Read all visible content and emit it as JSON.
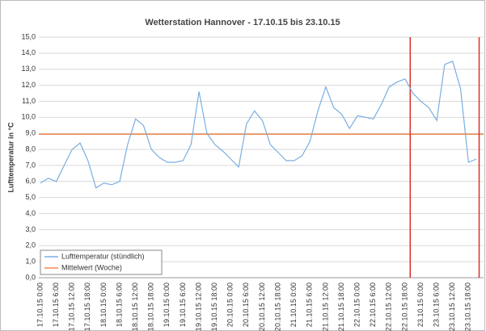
{
  "chart_data": {
    "type": "line",
    "title": "Wetterstation Hannover - 17.10.15 bis 23.10.15",
    "y_label": "Lufttemperatur in °C",
    "categories": [
      "17.10.15 0:00",
      null,
      "17.10.15 6:00",
      null,
      "17.10.15 12:00",
      null,
      "17.10.15 18:00",
      null,
      "18.10.15 0:00",
      null,
      "18.10.15 6:00",
      null,
      "18.10.15 12:00",
      null,
      "18.10.15 18:00",
      null,
      "19.10.15 0:00",
      null,
      "19.10.15 6:00",
      null,
      "19.10.15 12:00",
      null,
      "19.10.15 18:00",
      null,
      "20.10.15 0:00",
      null,
      "20.10.15 6:00",
      null,
      "20.10.15 12:00",
      null,
      "20.10.15 18:00",
      null,
      "21.10.15 0:00",
      null,
      "21.10.15 6:00",
      null,
      "21.10.15 12:00",
      null,
      "21.10.15 18:00",
      null,
      "22.10.15 0:00",
      null,
      "22.10.15 6:00",
      null,
      "22.10.15 12:00",
      null,
      "22.10.15 18:00",
      null,
      "23.10.15 0:00",
      null,
      "23.10.15 6:00",
      null,
      "23.10.15 12:00",
      null,
      "23.10.15 18:00",
      null
    ],
    "series": [
      {
        "name": "Lufttemperatur (stündlich)",
        "color": "#7aaee0",
        "values": [
          5.9,
          6.2,
          6.0,
          7.0,
          8.0,
          8.4,
          7.3,
          5.6,
          5.9,
          5.8,
          6.0,
          8.3,
          9.9,
          9.5,
          8.0,
          7.5,
          7.2,
          7.2,
          7.3,
          8.3,
          11.6,
          9.0,
          8.3,
          7.9,
          7.4,
          6.9,
          9.6,
          10.4,
          9.8,
          8.3,
          7.8,
          7.3,
          7.3,
          7.6,
          8.5,
          10.4,
          11.9,
          10.6,
          10.2,
          9.3,
          10.1,
          10.0,
          9.9,
          10.8,
          11.9,
          12.2,
          12.4,
          11.5,
          11.0,
          10.6,
          9.8,
          13.3,
          13.5,
          11.8,
          7.2,
          7.4
        ]
      }
    ],
    "mean": {
      "name": "Mittelwert (Woche)",
      "value": 8.95,
      "color": "#f08a4b"
    },
    "ylim": [
      0,
      15
    ],
    "yticks": [
      {
        "value": 0,
        "label": "0,0"
      },
      {
        "value": 1,
        "label": "1,0"
      },
      {
        "value": 2,
        "label": "2,0"
      },
      {
        "value": 3,
        "label": "3,0"
      },
      {
        "value": 4,
        "label": "4,0"
      },
      {
        "value": 5,
        "label": "5,0"
      },
      {
        "value": 6,
        "label": "6,0"
      },
      {
        "value": 7,
        "label": "7,0"
      },
      {
        "value": 8,
        "label": "8,0"
      },
      {
        "value": 9,
        "label": "9,0"
      },
      {
        "value": 10,
        "label": "10,0"
      },
      {
        "value": 11,
        "label": "11,0"
      },
      {
        "value": 12,
        "label": "12,0"
      },
      {
        "value": 13,
        "label": "13,0"
      },
      {
        "value": 14,
        "label": "14,0"
      },
      {
        "value": 15,
        "label": "15,0"
      }
    ],
    "grid": true,
    "legend": "lower left"
  }
}
